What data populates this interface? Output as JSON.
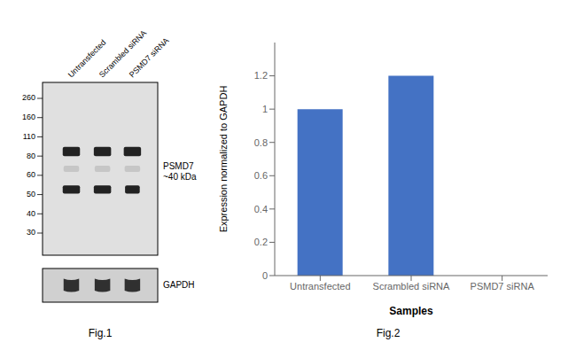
{
  "chart_data": [
    {
      "type": "blot",
      "title": "Fig.1",
      "categories": [
        "Untransfected",
        "Scrambled siRNA",
        "PSMD7 siRNA"
      ],
      "yticks": [
        260,
        160,
        110,
        80,
        60,
        50,
        40,
        30
      ],
      "annotations": [
        {
          "text": "PSMD7\n~40 kDa"
        },
        {
          "text": "GAPDH"
        }
      ]
    },
    {
      "type": "bar",
      "title": "Fig.2",
      "categories": [
        "Untransfected",
        "Scrambled siRNA",
        "PSMD7 siRNA"
      ],
      "values": [
        1.0,
        1.2,
        0.0
      ],
      "color": "#4472C4",
      "xlabel": "Samples",
      "ylabel": "Expression normalized to GAPDH",
      "ylim": [
        0,
        1.4
      ],
      "yticks": [
        0,
        0.2,
        0.4,
        0.6,
        0.8,
        1.0,
        1.2
      ]
    }
  ]
}
